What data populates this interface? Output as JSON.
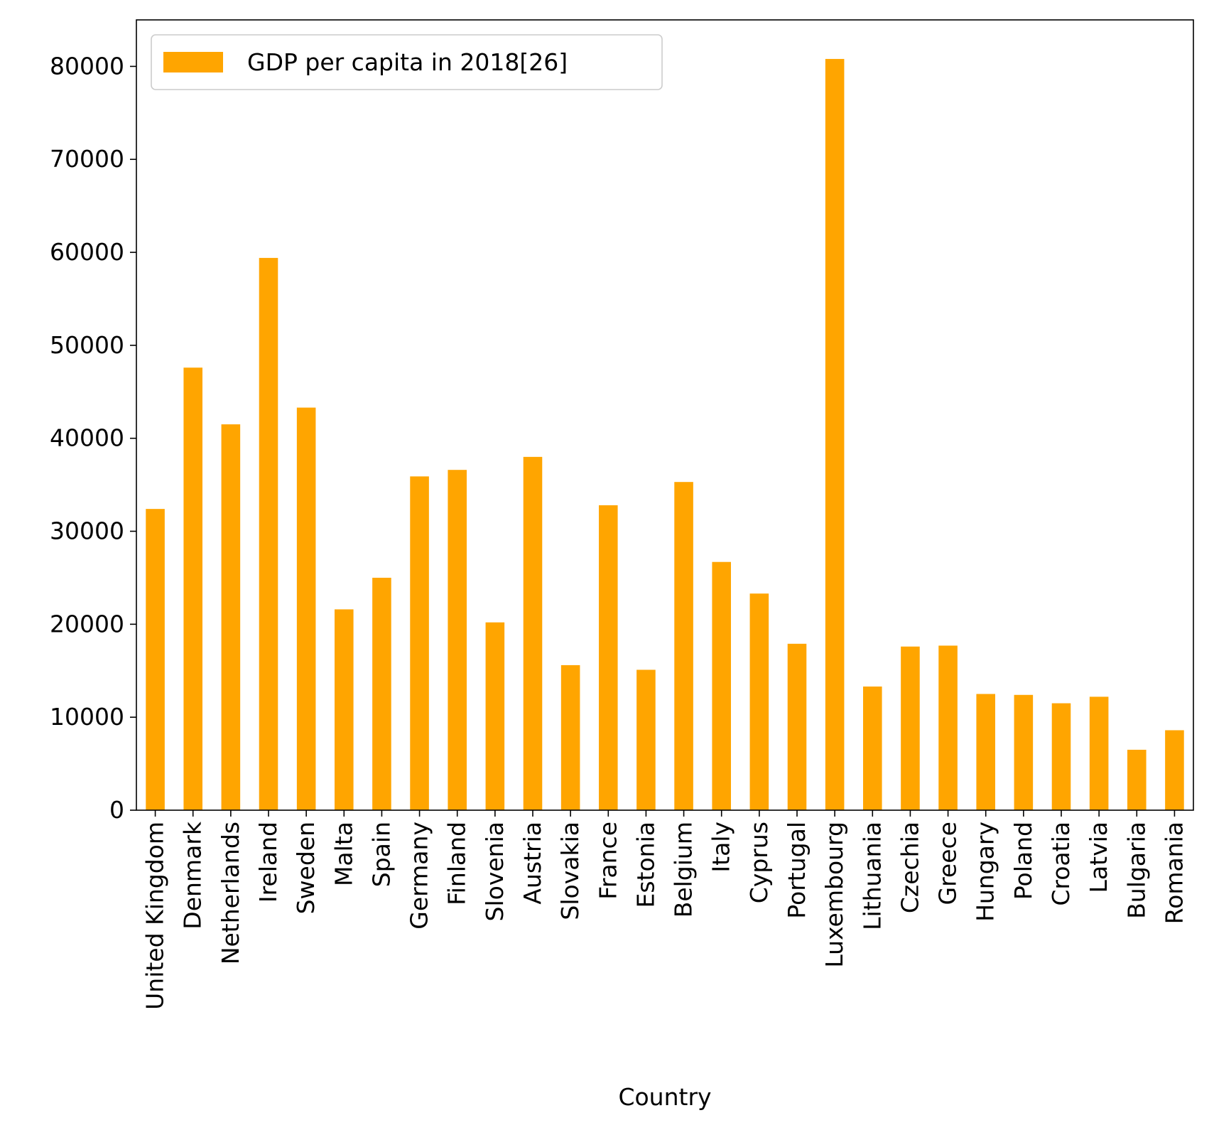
{
  "chart_data": {
    "type": "bar",
    "title": "",
    "xlabel": "Country",
    "ylabel": "",
    "ylim": [
      0,
      85000
    ],
    "yticks": [
      0,
      10000,
      20000,
      30000,
      40000,
      50000,
      60000,
      70000,
      80000
    ],
    "grid": false,
    "legend_position": "top-left",
    "bar_color": "#FFA500",
    "categories": [
      "United Kingdom",
      "Denmark",
      "Netherlands",
      "Ireland",
      "Sweden",
      "Malta",
      "Spain",
      "Germany",
      "Finland",
      "Slovenia",
      "Austria",
      "Slovakia",
      "France",
      "Estonia",
      "Belgium",
      "Italy",
      "Cyprus",
      "Portugal",
      "Luxembourg",
      "Lithuania",
      "Czechia",
      "Greece",
      "Hungary",
      "Poland",
      "Croatia",
      "Latvia",
      "Bulgaria",
      "Romania"
    ],
    "series": [
      {
        "name": "GDP per capita in 2018[26]",
        "values": [
          32400,
          47600,
          41500,
          59400,
          43300,
          21600,
          25000,
          35900,
          36600,
          20200,
          38000,
          15600,
          32800,
          15100,
          35300,
          26700,
          23300,
          17900,
          80800,
          13300,
          17600,
          17700,
          12500,
          12400,
          11500,
          12200,
          6500,
          8600
        ]
      }
    ]
  }
}
